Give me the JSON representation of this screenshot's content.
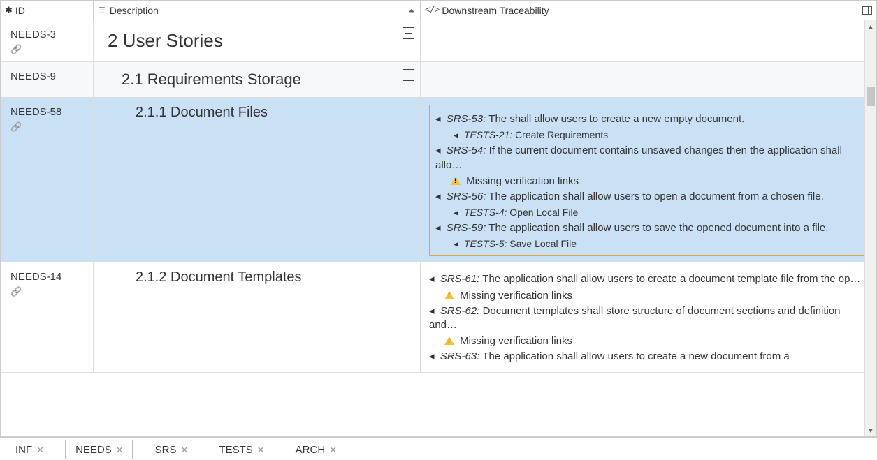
{
  "columns": {
    "id": "ID",
    "description": "Description",
    "traceability": "Downstream Traceability"
  },
  "rows": [
    {
      "id": "NEEDS-3",
      "hasLink": true,
      "level": 1,
      "desc": "2 User Stories",
      "collapsible": true,
      "alt": false,
      "selected": false,
      "trace": null
    },
    {
      "id": "NEEDS-9",
      "hasLink": false,
      "level": 2,
      "desc": "2.1 Requirements Storage",
      "collapsible": true,
      "alt": true,
      "selected": false,
      "trace": null
    },
    {
      "id": "NEEDS-58",
      "hasLink": true,
      "level": 3,
      "desc": "2.1.1 Document Files",
      "collapsible": false,
      "alt": false,
      "selected": true,
      "trace": {
        "boxed": true,
        "items": [
          {
            "ref": "SRS-53:",
            "text": "The shall allow users to create a new empty document.",
            "sub": [
              {
                "ref": "TESTS-21:",
                "text": "Create Requirements"
              }
            ]
          },
          {
            "ref": "SRS-54:",
            "text": "If the current document contains unsaved changes then the application shall allo…",
            "warn": "Missing verification links"
          },
          {
            "ref": "SRS-56:",
            "text": "The application shall allow users to open a document from a chosen file.",
            "sub": [
              {
                "ref": "TESTS-4:",
                "text": "Open Local File"
              }
            ]
          },
          {
            "ref": "SRS-59:",
            "text": "The application shall allow users to save the opened document into a file.",
            "sub": [
              {
                "ref": "TESTS-5:",
                "text": "Save Local File"
              }
            ]
          }
        ]
      }
    },
    {
      "id": "NEEDS-14",
      "hasLink": true,
      "level": 3,
      "desc": "2.1.2 Document Templates",
      "collapsible": false,
      "alt": false,
      "selected": false,
      "trace": {
        "boxed": false,
        "items": [
          {
            "ref": "SRS-61:",
            "text": "The application shall allow users to create a document template file from the op…",
            "warn": "Missing verification links"
          },
          {
            "ref": "SRS-62:",
            "text": "Document templates shall store structure of document sections and definition and…",
            "warn": "Missing verification links"
          },
          {
            "ref": "SRS-63:",
            "text": "The application shall allow users to create a new document from a",
            "cutoff": true
          }
        ]
      }
    }
  ],
  "tabs": [
    {
      "label": "INF",
      "active": false
    },
    {
      "label": "NEEDS",
      "active": true
    },
    {
      "label": "SRS",
      "active": false
    },
    {
      "label": "TESTS",
      "active": false
    },
    {
      "label": "ARCH",
      "active": false
    }
  ]
}
